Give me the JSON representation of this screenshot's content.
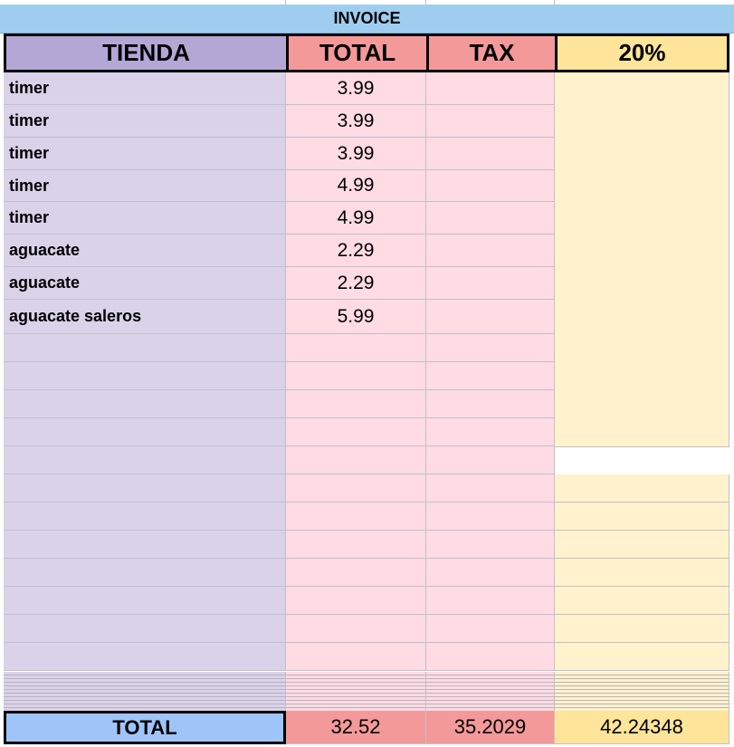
{
  "title": "INVOICE",
  "header": [
    "TIENDA",
    "TOTAL",
    "TAX",
    "20%"
  ],
  "rows": [
    [
      "timer",
      "3.99"
    ],
    [
      "timer",
      "3.99"
    ],
    [
      "timer",
      "3.99"
    ],
    [
      "timer",
      "4.99"
    ],
    [
      "timer",
      "4.99"
    ],
    [
      "aguacate",
      "2.29"
    ],
    [
      "aguacate",
      "2.29"
    ],
    [
      "aguacate saleros",
      "5.99"
    ]
  ],
  "footer": [
    "TOTAL",
    "32.52",
    "35.2029",
    "42.24348"
  ]
}
